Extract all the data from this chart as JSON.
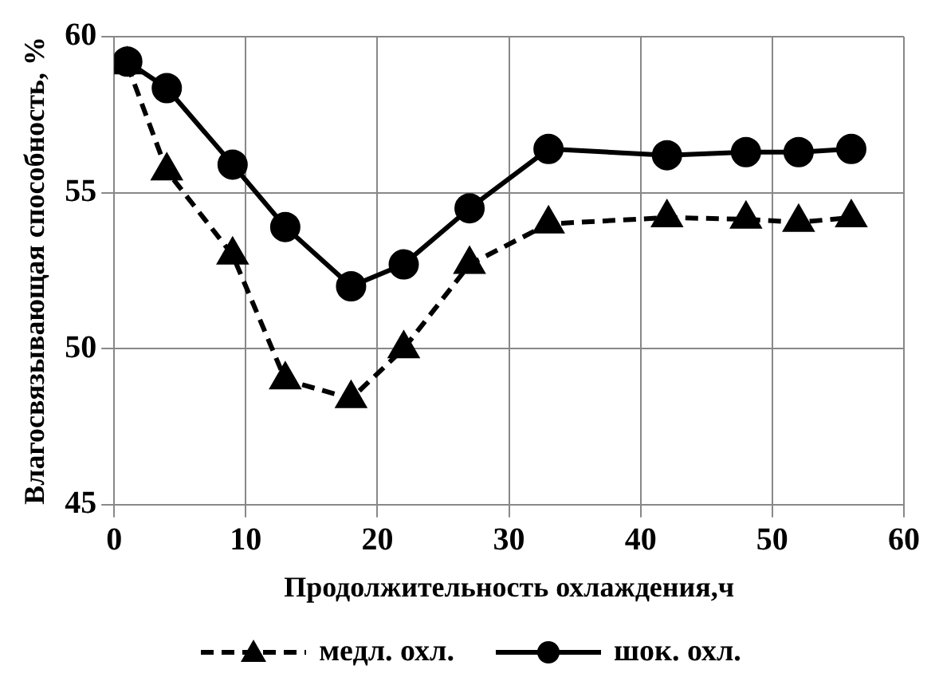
{
  "chart_data": {
    "type": "line",
    "xlabel": "Продолжительность охлаждения,ч",
    "ylabel": "Влагосвязывающая способность, %",
    "xlim": [
      0,
      60
    ],
    "xticks": [
      0,
      10,
      20,
      30,
      40,
      50,
      60
    ],
    "ylim": [
      45,
      60
    ],
    "yticks": [
      45,
      50,
      55,
      60
    ],
    "grid": true,
    "legend": "bottom",
    "series": [
      {
        "name": "медл. охл.",
        "color": "#000000",
        "marker": "triangle",
        "line_style": "dashed",
        "x": [
          1,
          4,
          9,
          13,
          18,
          22,
          27,
          33,
          42,
          48,
          52,
          56
        ],
        "values": [
          59.1,
          55.7,
          53.0,
          49.0,
          48.4,
          50.0,
          52.7,
          54.0,
          54.2,
          54.15,
          54.05,
          54.2
        ]
      },
      {
        "name": "шок. охл.",
        "color": "#000000",
        "marker": "circle",
        "line_style": "solid",
        "x": [
          1,
          4,
          9,
          13,
          18,
          22,
          27,
          33,
          42,
          48,
          52,
          56
        ],
        "values": [
          59.2,
          58.35,
          55.9,
          53.9,
          52.0,
          52.7,
          54.5,
          56.4,
          56.2,
          56.3,
          56.3,
          56.4
        ]
      }
    ]
  }
}
